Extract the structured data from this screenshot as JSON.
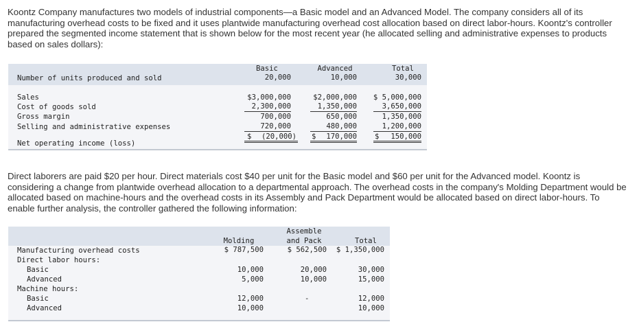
{
  "intro_paragraph": "Koontz Company manufactures two models of industrial components—a Basic model and an Advanced Model. The company considers all of its manufacturing overhead costs to be fixed and it uses plantwide manufacturing overhead cost allocation based on direct labor-hours. Koontz's controller prepared the segmented income statement that is shown below for the most recent year (he allocated selling and administrative expenses to products based on sales dollars):",
  "income_table": {
    "headers": {
      "basic": "Basic",
      "advanced": "Advanced",
      "total": "Total"
    },
    "units_row": {
      "label": "Number of units produced and sold",
      "basic": "20,000",
      "advanced": "10,000",
      "total": "30,000"
    },
    "rows": [
      {
        "label": "Sales",
        "basic": "$3,000,000",
        "advanced": "$2,000,000",
        "total": "$ 5,000,000"
      },
      {
        "label": "Cost of goods sold",
        "basic": "2,300,000",
        "advanced": "1,350,000",
        "total": "3,650,000"
      },
      {
        "label": "Gross margin",
        "basic": "700,000",
        "advanced": "650,000",
        "total": "1,350,000"
      },
      {
        "label": "Selling and administrative expenses",
        "basic": "720,000",
        "advanced": "480,000",
        "total": "1,200,000"
      }
    ],
    "net_row": {
      "label": "Net operating income (loss)",
      "basic_sign": "$",
      "basic": "(20,000)",
      "advanced_sign": "$",
      "advanced": "170,000",
      "total_sign": "$",
      "total": "150,000"
    }
  },
  "second_paragraph": "Direct laborers are paid $20 per hour. Direct materials cost $40 per unit for the Basic model and $60 per unit for the Advanced model. Koontz is considering a change from plantwide overhead allocation to a departmental approach. The overhead costs in the company's Molding Department would be allocated based on machine-hours and the overhead costs in its Assembly and Pack Department would be allocated based on direct labor-hours. To enable further analysis, the controller gathered the following information:",
  "overhead_table": {
    "headers": {
      "molding": "Molding",
      "assemble_line1": "Assemble",
      "assemble_line2": "and Pack",
      "total": "Total"
    },
    "rows": [
      {
        "label": "Manufacturing overhead costs",
        "molding": "$ 787,500",
        "assemble": "$ 562,500",
        "total": "$ 1,350,000"
      },
      {
        "label": "Direct labor hours:",
        "molding": "",
        "assemble": "",
        "total": ""
      },
      {
        "label": "Basic",
        "molding": "10,000",
        "assemble": "20,000",
        "total": "30,000"
      },
      {
        "label": "Advanced",
        "molding": "5,000",
        "assemble": "10,000",
        "total": "15,000"
      },
      {
        "label": "Machine hours:",
        "molding": "",
        "assemble": "",
        "total": ""
      },
      {
        "label": "Basic",
        "molding": "12,000",
        "assemble": "-",
        "total": "12,000"
      },
      {
        "label": "Advanced",
        "molding": "10,000",
        "assemble": "",
        "total": "10,000"
      }
    ]
  }
}
